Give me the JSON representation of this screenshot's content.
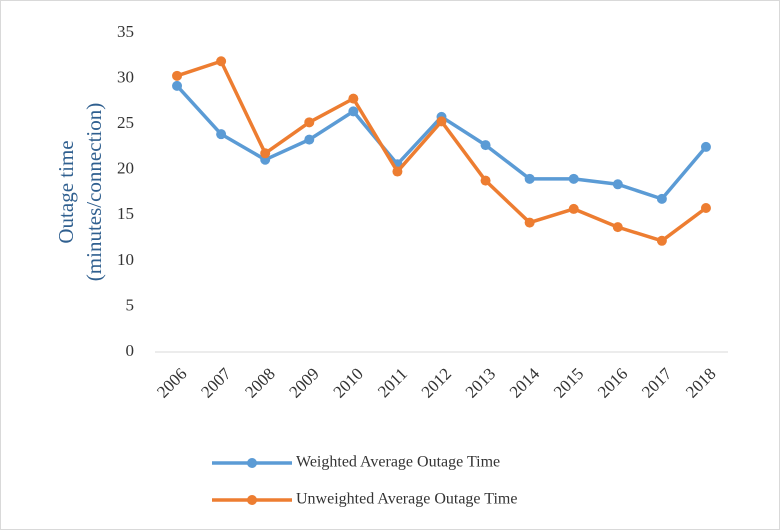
{
  "chart_data": {
    "type": "line",
    "y_label": [
      "Outage time",
      "(minutes/connection)"
    ],
    "categories": [
      "2006",
      "2007",
      "2008",
      "2009",
      "2010",
      "2011",
      "2012",
      "2013",
      "2014",
      "2015",
      "2016",
      "2017",
      "2018"
    ],
    "series": [
      {
        "name": "Weighted Average Outage Time",
        "color": "#5b9bd5",
        "values": [
          29.2,
          23.9,
          21.1,
          23.3,
          26.4,
          20.6,
          25.8,
          22.7,
          19.0,
          19.0,
          18.4,
          16.8,
          22.5
        ]
      },
      {
        "name": "Unweighted Average Outage Time",
        "color": "#ed7d31",
        "values": [
          30.3,
          31.9,
          21.8,
          25.2,
          27.8,
          19.8,
          25.3,
          18.8,
          14.2,
          15.7,
          13.7,
          12.2,
          15.8
        ]
      }
    ],
    "ylim": [
      0,
      35
    ],
    "yticks": [
      0,
      5,
      10,
      15,
      20,
      25,
      30,
      35
    ],
    "grid": false
  }
}
